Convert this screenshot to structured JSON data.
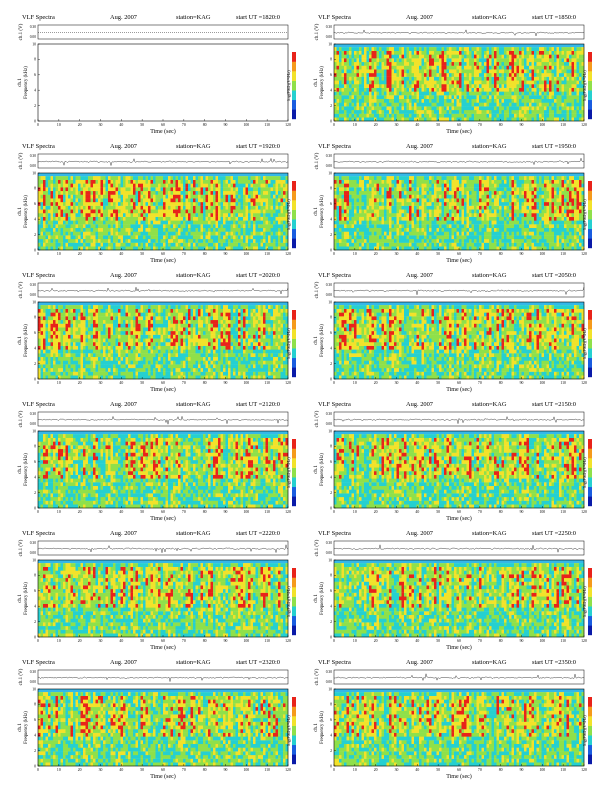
{
  "header": {
    "title": "VLF Spectra",
    "date": "Aug. 2007",
    "station": "station=KAG",
    "start_prefix": "start  UT  ="
  },
  "labels": {
    "waveform_axis": "ch.1 (V)",
    "channel": "ch.1",
    "freq_axis": "Frequency (kHz)",
    "xlabel": "Time (sec)",
    "colorbar": "log(PSD)(V²/Hz)"
  },
  "colors": {
    "spec_low": "#25d0d0",
    "spec_mid": "#8fe04a",
    "spec_high": "#f2e22a",
    "spec_peak": "#e8231a",
    "spec_top": "#35b8e8"
  },
  "chart_data": [
    {
      "type": "heatmap",
      "start_ut": "1820:0",
      "xlim": [
        0,
        120
      ],
      "ylim": [
        0,
        10
      ],
      "wave_ylim": [
        0,
        0.3
      ],
      "xticks": [
        "0",
        "10",
        "20",
        "30",
        "40",
        "50",
        "60",
        "70",
        "80",
        "90",
        "100",
        "110",
        "120"
      ],
      "yticks": [
        "0",
        "2",
        "4",
        "6",
        "8",
        "10"
      ],
      "wave_yticks": [
        "0.00",
        "0.30"
      ],
      "has_data": false
    },
    {
      "type": "heatmap",
      "start_ut": "1850:0",
      "xlim": [
        0,
        120
      ],
      "ylim": [
        0,
        10
      ],
      "wave_ylim": [
        0,
        0.3
      ],
      "xticks": [
        "0",
        "10",
        "20",
        "30",
        "40",
        "50",
        "60",
        "70",
        "80",
        "90",
        "100",
        "110",
        "120"
      ],
      "yticks": [
        "0",
        "2",
        "4",
        "6",
        "8",
        "10"
      ],
      "wave_yticks": [
        "0.00",
        "0.30"
      ],
      "has_data": true
    },
    {
      "type": "heatmap",
      "start_ut": "1920:0",
      "xlim": [
        0,
        120
      ],
      "ylim": [
        0,
        10
      ],
      "wave_ylim": [
        0,
        0.3
      ],
      "xticks": [
        "0",
        "10",
        "20",
        "30",
        "40",
        "50",
        "60",
        "70",
        "80",
        "90",
        "100",
        "110",
        "120"
      ],
      "yticks": [
        "0",
        "2",
        "4",
        "6",
        "8",
        "10"
      ],
      "wave_yticks": [
        "0.00",
        "0.30"
      ],
      "has_data": true
    },
    {
      "type": "heatmap",
      "start_ut": "1950:0",
      "xlim": [
        0,
        120
      ],
      "ylim": [
        0,
        10
      ],
      "wave_ylim": [
        0,
        0.3
      ],
      "xticks": [
        "0",
        "10",
        "20",
        "30",
        "40",
        "50",
        "60",
        "70",
        "80",
        "90",
        "100",
        "110",
        "120"
      ],
      "yticks": [
        "0",
        "2",
        "4",
        "6",
        "8",
        "10"
      ],
      "wave_yticks": [
        "0.00",
        "0.30"
      ],
      "has_data": true
    },
    {
      "type": "heatmap",
      "start_ut": "2020:0",
      "xlim": [
        0,
        120
      ],
      "ylim": [
        0,
        10
      ],
      "wave_ylim": [
        0,
        0.3
      ],
      "xticks": [
        "0",
        "10",
        "20",
        "30",
        "40",
        "50",
        "60",
        "70",
        "80",
        "90",
        "100",
        "110",
        "120"
      ],
      "yticks": [
        "0",
        "2",
        "4",
        "6",
        "8",
        "10"
      ],
      "wave_yticks": [
        "0.00",
        "0.30"
      ],
      "has_data": true
    },
    {
      "type": "heatmap",
      "start_ut": "2050:0",
      "xlim": [
        0,
        120
      ],
      "ylim": [
        0,
        10
      ],
      "wave_ylim": [
        0,
        0.3
      ],
      "xticks": [
        "0",
        "10",
        "20",
        "30",
        "40",
        "50",
        "60",
        "70",
        "80",
        "90",
        "100",
        "110",
        "120"
      ],
      "yticks": [
        "0",
        "2",
        "4",
        "6",
        "8",
        "10"
      ],
      "wave_yticks": [
        "0.00",
        "0.30"
      ],
      "has_data": true
    },
    {
      "type": "heatmap",
      "start_ut": "2120:0",
      "xlim": [
        0,
        120
      ],
      "ylim": [
        0,
        10
      ],
      "wave_ylim": [
        0,
        0.3
      ],
      "xticks": [
        "0",
        "10",
        "20",
        "30",
        "40",
        "50",
        "60",
        "70",
        "80",
        "90",
        "100",
        "110",
        "120"
      ],
      "yticks": [
        "0",
        "2",
        "4",
        "6",
        "8",
        "10"
      ],
      "wave_yticks": [
        "0.00",
        "0.30"
      ],
      "has_data": true
    },
    {
      "type": "heatmap",
      "start_ut": "2150:0",
      "xlim": [
        0,
        120
      ],
      "ylim": [
        0,
        10
      ],
      "wave_ylim": [
        0,
        0.3
      ],
      "xticks": [
        "0",
        "10",
        "20",
        "30",
        "40",
        "50",
        "60",
        "70",
        "80",
        "90",
        "100",
        "110",
        "120"
      ],
      "yticks": [
        "0",
        "2",
        "4",
        "6",
        "8",
        "10"
      ],
      "wave_yticks": [
        "0.00",
        "0.30"
      ],
      "has_data": true
    },
    {
      "type": "heatmap",
      "start_ut": "2220:0",
      "xlim": [
        0,
        120
      ],
      "ylim": [
        0,
        10
      ],
      "wave_ylim": [
        0,
        0.3
      ],
      "xticks": [
        "0",
        "10",
        "20",
        "30",
        "40",
        "50",
        "60",
        "70",
        "80",
        "90",
        "100",
        "110",
        "120"
      ],
      "yticks": [
        "0",
        "2",
        "4",
        "6",
        "8",
        "10"
      ],
      "wave_yticks": [
        "0.00",
        "0.30"
      ],
      "has_data": true
    },
    {
      "type": "heatmap",
      "start_ut": "2250:0",
      "xlim": [
        0,
        120
      ],
      "ylim": [
        0,
        10
      ],
      "wave_ylim": [
        0,
        0.3
      ],
      "xticks": [
        "0",
        "10",
        "20",
        "30",
        "40",
        "50",
        "60",
        "70",
        "80",
        "90",
        "100",
        "110",
        "120"
      ],
      "yticks": [
        "0",
        "2",
        "4",
        "6",
        "8",
        "10"
      ],
      "wave_yticks": [
        "0.00",
        "0.30"
      ],
      "has_data": true
    },
    {
      "type": "heatmap",
      "start_ut": "2320:0",
      "xlim": [
        0,
        120
      ],
      "ylim": [
        0,
        10
      ],
      "wave_ylim": [
        0,
        0.3
      ],
      "xticks": [
        "0",
        "10",
        "20",
        "30",
        "40",
        "50",
        "60",
        "70",
        "80",
        "90",
        "100",
        "110",
        "120"
      ],
      "yticks": [
        "0",
        "2",
        "4",
        "6",
        "8",
        "10"
      ],
      "wave_yticks": [
        "0.00",
        "0.30"
      ],
      "has_data": true
    },
    {
      "type": "heatmap",
      "start_ut": "2350:0",
      "xlim": [
        0,
        120
      ],
      "ylim": [
        0,
        10
      ],
      "wave_ylim": [
        0,
        0.3
      ],
      "xticks": [
        "0",
        "10",
        "20",
        "30",
        "40",
        "50",
        "60",
        "70",
        "80",
        "90",
        "100",
        "110",
        "120"
      ],
      "yticks": [
        "0",
        "2",
        "4",
        "6",
        "8",
        "10"
      ],
      "wave_yticks": [
        "0.00",
        "0.30"
      ],
      "has_data": true
    }
  ]
}
